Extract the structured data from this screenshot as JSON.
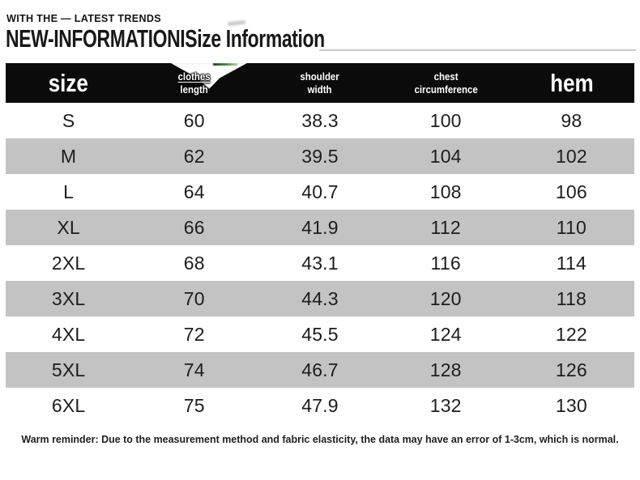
{
  "tagline": "WITH THE — LATEST TRENDS",
  "heading": "NEW-INFORMATIONISize Information",
  "size_table": {
    "columns": [
      {
        "lines": [
          "size"
        ],
        "large": true
      },
      {
        "lines": [
          "clothes",
          "length"
        ],
        "large": false
      },
      {
        "lines": [
          "shoulder",
          "width"
        ],
        "large": false
      },
      {
        "lines": [
          "chest",
          "circumference"
        ],
        "large": false
      },
      {
        "lines": [
          "hem"
        ],
        "large": true
      }
    ],
    "rows": [
      [
        "S",
        "60",
        "38.3",
        "100",
        "98"
      ],
      [
        "M",
        "62",
        "39.5",
        "104",
        "102"
      ],
      [
        "L",
        "64",
        "40.7",
        "108",
        "106"
      ],
      [
        "XL",
        "66",
        "41.9",
        "112",
        "110"
      ],
      [
        "2XL",
        "68",
        "43.1",
        "116",
        "114"
      ],
      [
        "3XL",
        "70",
        "44.3",
        "120",
        "118"
      ],
      [
        "4XL",
        "72",
        "45.5",
        "124",
        "122"
      ],
      [
        "5XL",
        "74",
        "46.7",
        "128",
        "126"
      ],
      [
        "6XL",
        "75",
        "47.9",
        "132",
        "130"
      ]
    ]
  },
  "footer_note": "Warm reminder: Due to the measurement method and fabric elasticity, the data may have an error of 1-3cm, which is normal.",
  "colors": {
    "header_bg": "#0b0b0b",
    "header_text": "#ffffff",
    "row_stripe": "#c3c3c3",
    "body_text": "#1d1d1d",
    "heading_underline": "#c9c9c9",
    "artifact_green": "#3f7a33"
  }
}
